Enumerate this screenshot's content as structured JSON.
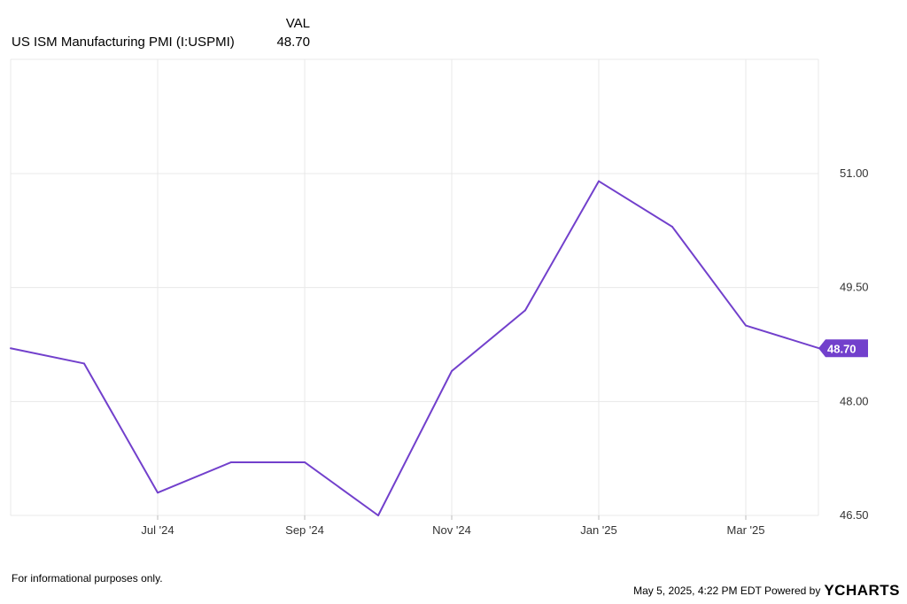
{
  "legend": {
    "column_header": "VAL",
    "series_name": "US ISM Manufacturing PMI (I:USPMI)",
    "series_value": "48.70"
  },
  "chart_data": {
    "type": "line",
    "title": "",
    "xlabel": "",
    "ylabel": "",
    "x": [
      "May '24",
      "Jun '24",
      "Jul '24",
      "Aug '24",
      "Sep '24",
      "Oct '24",
      "Nov '24",
      "Dec '24",
      "Jan '25",
      "Feb '25",
      "Mar '25",
      "Apr '25"
    ],
    "x_tick_labels": [
      "Jul '24",
      "Sep '24",
      "Nov '24",
      "Jan '25",
      "Mar '25"
    ],
    "series": [
      {
        "name": "US ISM Manufacturing PMI (I:USPMI)",
        "values": [
          48.7,
          48.5,
          46.8,
          47.2,
          47.2,
          46.5,
          48.4,
          49.2,
          50.9,
          50.3,
          49.0,
          48.7
        ],
        "color": "#7240cc"
      }
    ],
    "y_ticks": [
      "51.00",
      "49.50",
      "48.00",
      "46.50"
    ],
    "ylim": [
      46.5,
      52.0
    ],
    "last_value_label": "48.70",
    "y_axis_position": "right",
    "grid": true
  },
  "footer": {
    "disclaimer": "For informational purposes only.",
    "timestamp": "May 5, 2025, 4:22 PM EDT Powered by",
    "brand": "YCHARTS"
  },
  "colors": {
    "line": "#7240cc",
    "grid": "#e8e8e8",
    "tick_text": "#333333"
  }
}
